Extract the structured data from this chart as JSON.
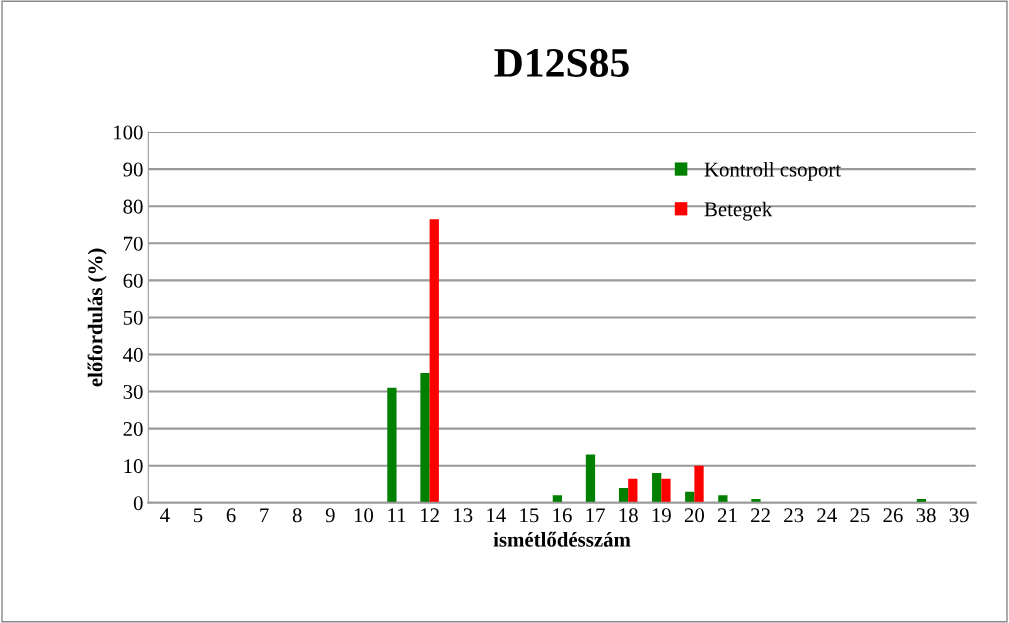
{
  "chart_data": {
    "type": "bar",
    "title": "D12S85",
    "xlabel": "ismétlődésszám",
    "ylabel": "előfordulás (%)",
    "categories": [
      "4",
      "5",
      "6",
      "7",
      "8",
      "9",
      "10",
      "11",
      "12",
      "13",
      "14",
      "15",
      "16",
      "17",
      "18",
      "19",
      "20",
      "21",
      "22",
      "23",
      "24",
      "25",
      "26",
      "38",
      "39"
    ],
    "series": [
      {
        "name": "Kontroll csoport",
        "color": "#008000",
        "values": [
          0,
          0,
          0,
          0,
          0,
          0,
          0,
          31,
          35,
          0,
          0,
          0,
          2,
          13,
          4,
          8,
          3,
          2,
          1,
          0,
          0,
          0,
          0,
          1,
          0
        ]
      },
      {
        "name": "Betegek",
        "color": "#ff0000",
        "values": [
          0,
          0,
          0,
          0,
          0,
          0,
          0,
          0,
          76.5,
          0,
          0,
          0,
          0,
          0,
          6.5,
          6.5,
          10,
          0,
          0,
          0,
          0,
          0,
          0,
          0,
          0
        ]
      }
    ],
    "ylim": [
      0,
      100
    ],
    "yticks": [
      0,
      10,
      20,
      30,
      40,
      50,
      60,
      70,
      80,
      90,
      100
    ],
    "grid": "y",
    "legend": "top right"
  }
}
